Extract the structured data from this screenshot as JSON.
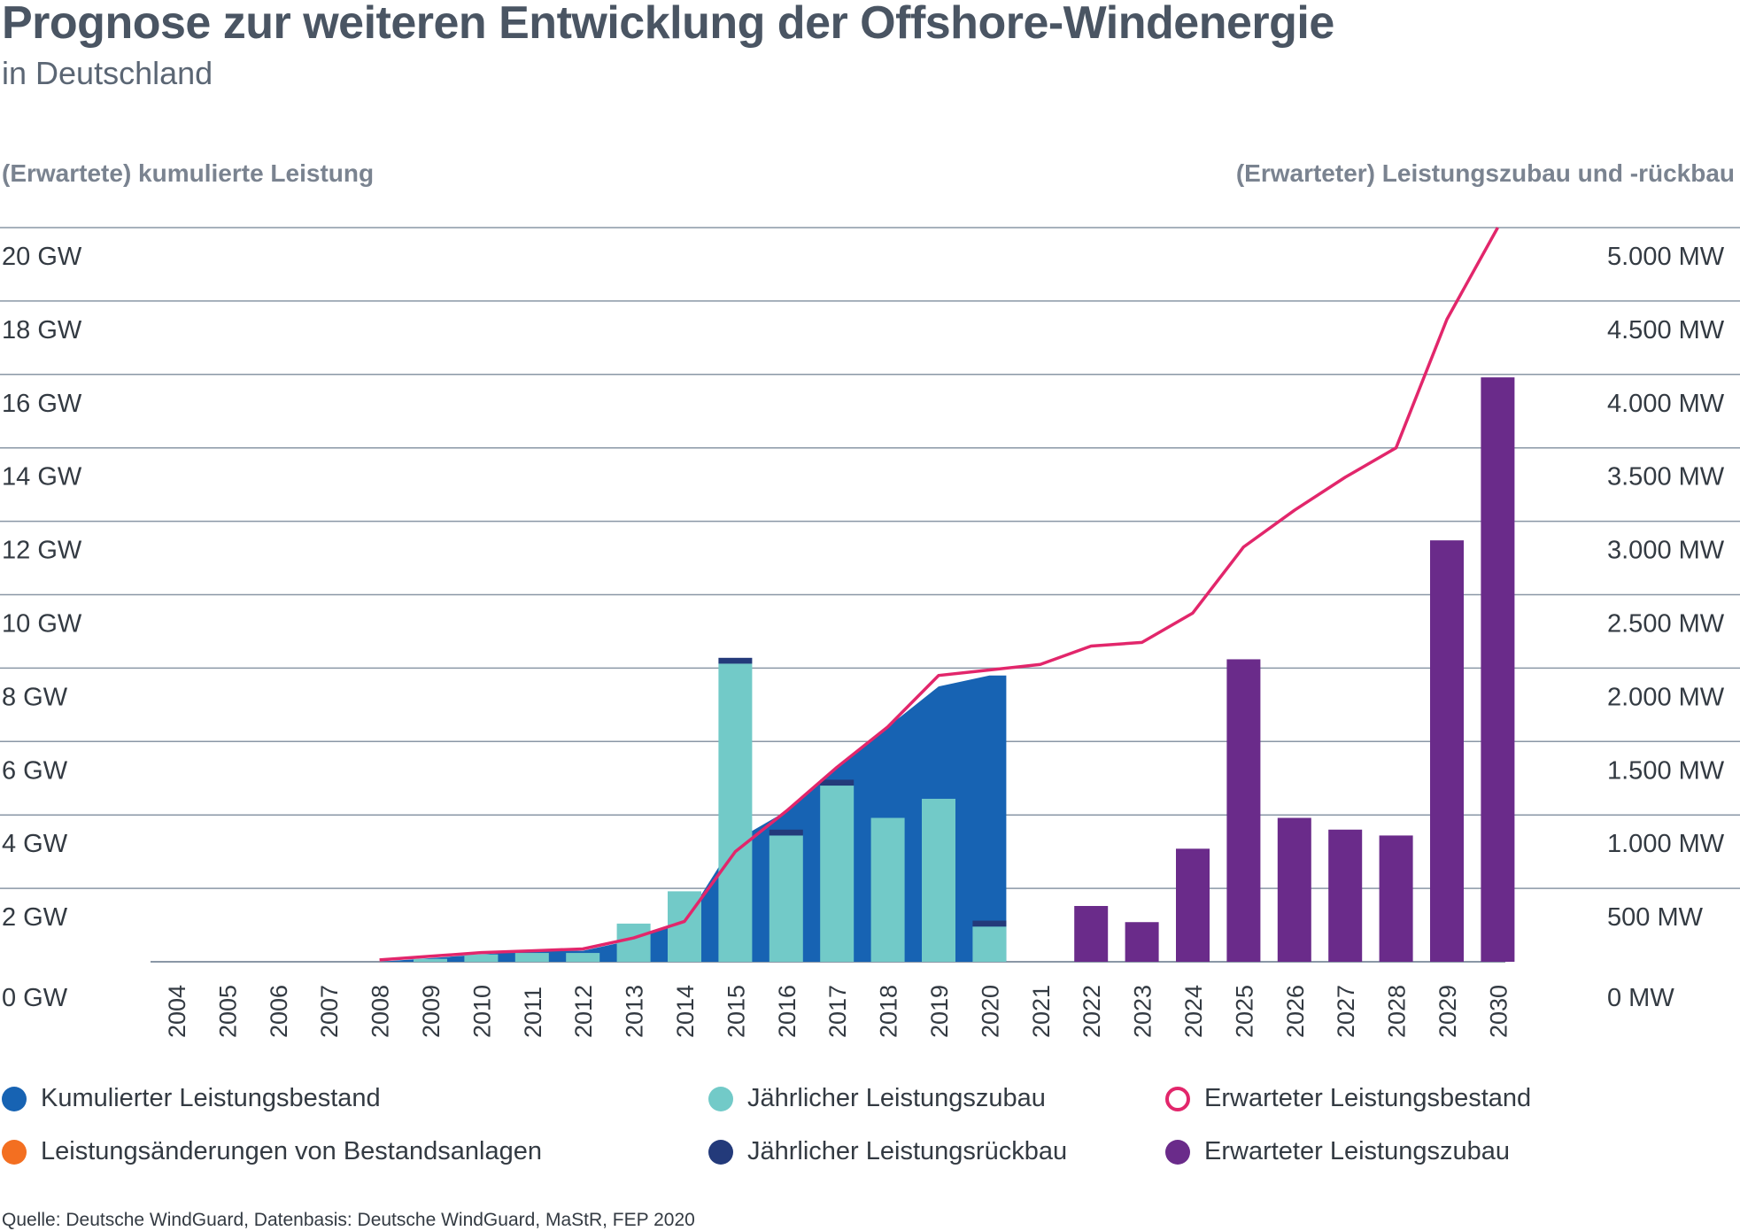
{
  "colors": {
    "cumulative": "#1763b3",
    "annual_additions": "#72cac8",
    "annual_decommissioning": "#233a7a",
    "expected_stock": "#e2266b",
    "expected_additions": "#6a2b8a",
    "changes_existing": "#f36f21",
    "grid": "#8a97a6",
    "text": "#333a42"
  },
  "chart_data": {
    "type": "bar",
    "title": "Prognose zur weiteren Entwicklung der Offshore-Windenergie",
    "subtitle": "in Deutschland",
    "ylabel_left": "(Erwartete) kumulierte Leistung",
    "ylabel_right": "(Erwarteter) Leistungszubau und -rückbau",
    "left_axis": {
      "unit": "GW",
      "min": 0,
      "max": 20,
      "step": 2,
      "tick_labels": [
        "0 GW",
        "2 GW",
        "4 GW",
        "6 GW",
        "8 GW",
        "10 GW",
        "12 GW",
        "14 GW",
        "16 GW",
        "18 GW",
        "20 GW"
      ]
    },
    "right_axis": {
      "unit": "MW",
      "min": 0,
      "max": 5000,
      "step": 500,
      "tick_labels": [
        "0 MW",
        "500 MW",
        "1.000 MW",
        "1.500 MW",
        "2.000 MW",
        "2.500 MW",
        "3.000 MW",
        "3.500 MW",
        "4.000 MW",
        "4.500 MW",
        "5.000 MW"
      ]
    },
    "categories": [
      "2004",
      "2005",
      "2006",
      "2007",
      "2008",
      "2009",
      "2010",
      "2011",
      "2012",
      "2013",
      "2014",
      "2015",
      "2016",
      "2017",
      "2018",
      "2019",
      "2020",
      "2021",
      "2022",
      "2023",
      "2024",
      "2025",
      "2026",
      "2027",
      "2028",
      "2029",
      "2030"
    ],
    "series": [
      {
        "name": "Kumulierter Leistungsbestand",
        "type": "area",
        "axis": "left",
        "unit": "GW",
        "values": [
          0,
          0,
          0,
          0,
          0,
          0.1,
          0.2,
          0.3,
          0.3,
          0.6,
          1.1,
          3.3,
          4.1,
          5.3,
          6.4,
          7.5,
          7.8,
          null,
          null,
          null,
          null,
          null,
          null,
          null,
          null,
          null,
          null
        ]
      },
      {
        "name": "Jährlicher Leistungszubau",
        "type": "bar",
        "axis": "right",
        "unit": "MW",
        "values": [
          0,
          0,
          0,
          0,
          0,
          20,
          50,
          60,
          60,
          260,
          480,
          2030,
          860,
          1200,
          980,
          1110,
          240,
          0,
          null,
          null,
          null,
          null,
          null,
          null,
          null,
          null,
          null
        ]
      },
      {
        "name": "Jährlicher Leistungsrückbau",
        "type": "bar",
        "axis": "right",
        "unit": "MW",
        "values": [
          0,
          0,
          0,
          0,
          0,
          0,
          0,
          0,
          0,
          0,
          0,
          40,
          40,
          40,
          0,
          0,
          40,
          0,
          null,
          null,
          null,
          null,
          null,
          null,
          null,
          null,
          null
        ]
      },
      {
        "name": "Leistungsänderungen von Bestandsanlagen",
        "type": "bar",
        "axis": "right",
        "unit": "MW",
        "values": [
          0,
          0,
          0,
          0,
          0,
          0,
          0,
          0,
          0,
          0,
          0,
          0,
          0,
          0,
          0,
          0,
          0,
          0,
          null,
          null,
          null,
          null,
          null,
          null,
          null,
          null,
          null
        ]
      },
      {
        "name": "Erwarteter Leistungsbestand",
        "type": "line",
        "axis": "left",
        "unit": "GW",
        "values": [
          null,
          null,
          null,
          null,
          0.05,
          0.15,
          0.25,
          0.3,
          0.35,
          0.65,
          1.1,
          3.0,
          4.1,
          5.3,
          6.4,
          7.8,
          7.95,
          8.1,
          8.6,
          8.7,
          9.5,
          11.3,
          12.3,
          13.2,
          14.0,
          17.5,
          20.2
        ]
      },
      {
        "name": "Erwarteter Leistungszubau",
        "type": "bar",
        "axis": "right",
        "unit": "MW",
        "values": [
          null,
          null,
          null,
          null,
          null,
          null,
          null,
          null,
          null,
          null,
          null,
          null,
          null,
          null,
          null,
          null,
          null,
          null,
          380,
          270,
          770,
          2060,
          980,
          900,
          860,
          2870,
          3980
        ]
      }
    ],
    "grid": true,
    "legend_position": "bottom"
  },
  "legend": [
    {
      "label": "Kumulierter Leistungsbestand",
      "color": "#1763b3",
      "style": "filled"
    },
    {
      "label": "Jährlicher Leistungszubau",
      "color": "#72cac8",
      "style": "filled"
    },
    {
      "label": "Erwarteter Leistungsbestand",
      "color": "#e2266b",
      "style": "ring"
    },
    {
      "label": "Leistungsänderungen von Bestandsanlagen",
      "color": "#f36f21",
      "style": "filled"
    },
    {
      "label": "Jährlicher Leistungsrückbau",
      "color": "#233a7a",
      "style": "filled"
    },
    {
      "label": "Erwarteter Leistungszubau",
      "color": "#6a2b8a",
      "style": "filled"
    }
  ],
  "source": "Quelle: Deutsche WindGuard, Datenbasis: Deutsche WindGuard, MaStR, FEP 2020"
}
